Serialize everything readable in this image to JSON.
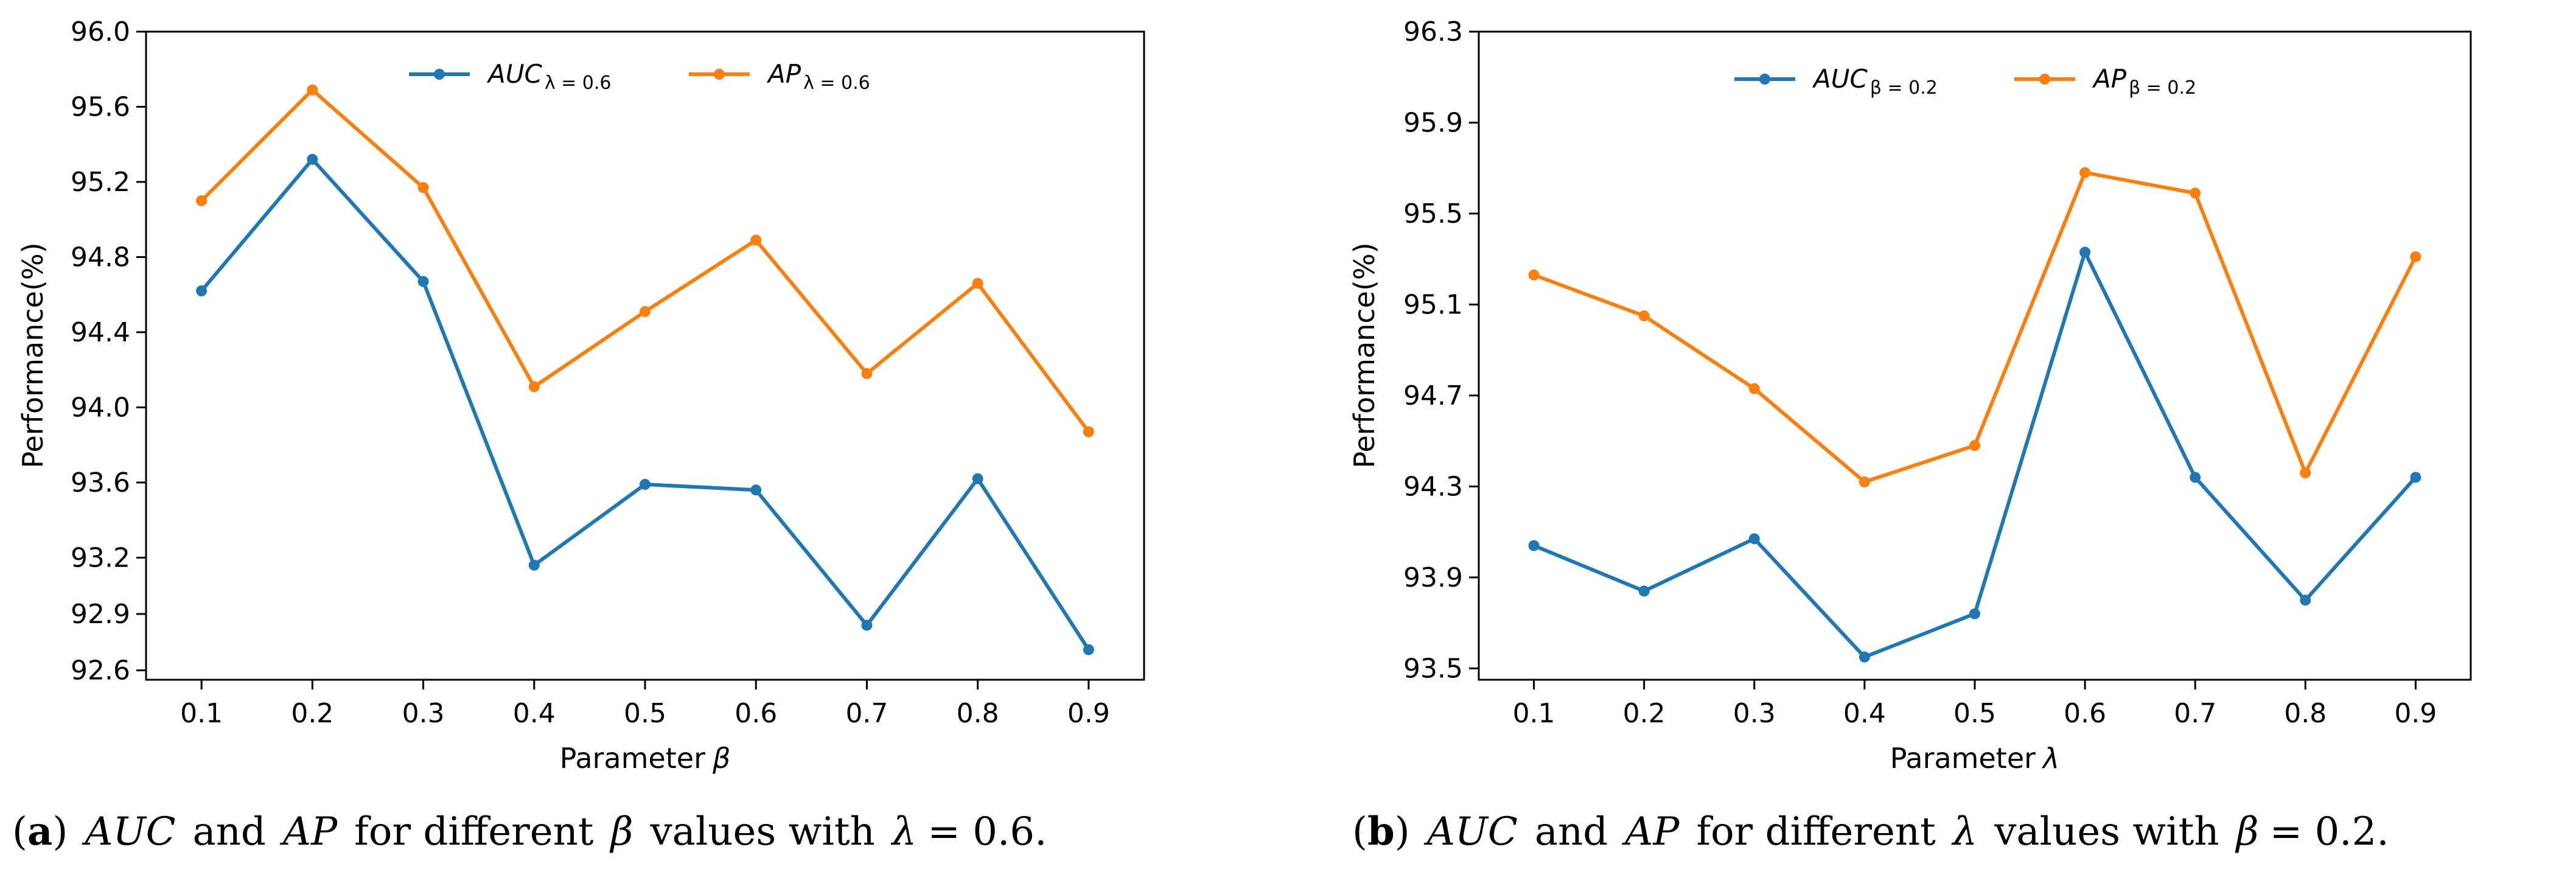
{
  "chart_data": [
    {
      "type": "line",
      "panel_letter": "a",
      "caption": {
        "open": "(",
        "letter": "a",
        "close": ")",
        "auc": "AUC",
        "and": "and",
        "ap": "AP",
        "for_different": "for different",
        "param": "β",
        "values_with": "values with",
        "fixed": "λ",
        "eq": "= 0.6."
      },
      "xlabel_text": "Parameter",
      "xlabel_symbol": "β",
      "ylabel": "Performance(%)",
      "x": [
        0.1,
        0.2,
        0.3,
        0.4,
        0.5,
        0.6,
        0.7,
        0.8,
        0.9
      ],
      "x_tick_labels": [
        "0.1",
        "0.2",
        "0.3",
        "0.4",
        "0.5",
        "0.6",
        "0.7",
        "0.8",
        "0.9"
      ],
      "ylim": [
        92.55,
        96.0
      ],
      "y_ticks": [
        92.6,
        92.9,
        93.2,
        93.6,
        94.0,
        94.4,
        94.8,
        95.2,
        95.6,
        96.0
      ],
      "y_tick_labels": [
        "92.6",
        "92.9",
        "93.2",
        "93.6",
        "94.0",
        "94.4",
        "94.8",
        "95.2",
        "95.6",
        "96.0"
      ],
      "legend_position": "top-center",
      "series": [
        {
          "name": "AUC",
          "subscript": "λ = 0.6",
          "color": "#1f77b4",
          "values": [
            94.62,
            95.32,
            94.67,
            93.16,
            93.59,
            93.56,
            92.84,
            93.62,
            92.71
          ]
        },
        {
          "name": "AP",
          "subscript": "λ = 0.6",
          "color": "#ff7f0e",
          "values": [
            95.1,
            95.69,
            95.17,
            94.11,
            94.51,
            94.89,
            94.18,
            94.66,
            93.87
          ]
        }
      ]
    },
    {
      "type": "line",
      "panel_letter": "b",
      "caption": {
        "open": "(",
        "letter": "b",
        "close": ")",
        "auc": "AUC",
        "and": "and",
        "ap": "AP",
        "for_different": "for different",
        "param": "λ",
        "values_with": "values with",
        "fixed": "β",
        "eq": "= 0.2."
      },
      "xlabel_text": "Parameter",
      "xlabel_symbol": "λ",
      "ylabel": "Performance(%)",
      "x": [
        0.1,
        0.2,
        0.3,
        0.4,
        0.5,
        0.6,
        0.7,
        0.8,
        0.9
      ],
      "x_tick_labels": [
        "0.1",
        "0.2",
        "0.3",
        "0.4",
        "0.5",
        "0.6",
        "0.7",
        "0.8",
        "0.9"
      ],
      "ylim": [
        93.45,
        96.3
      ],
      "y_ticks": [
        93.5,
        93.9,
        94.3,
        94.7,
        95.1,
        95.5,
        95.9,
        96.3
      ],
      "y_tick_labels": [
        "93.5",
        "93.9",
        "94.3",
        "94.7",
        "95.1",
        "95.5",
        "95.9",
        "96.3"
      ],
      "legend_position": "top-center",
      "series": [
        {
          "name": "AUC",
          "subscript": "β = 0.2",
          "color": "#1f77b4",
          "values": [
            94.04,
            93.84,
            94.07,
            93.55,
            93.74,
            95.33,
            94.34,
            93.8,
            94.34
          ]
        },
        {
          "name": "AP",
          "subscript": "β = 0.2",
          "color": "#ff7f0e",
          "values": [
            95.23,
            95.05,
            94.73,
            94.32,
            94.48,
            95.68,
            95.59,
            94.36,
            95.31
          ]
        }
      ]
    }
  ]
}
